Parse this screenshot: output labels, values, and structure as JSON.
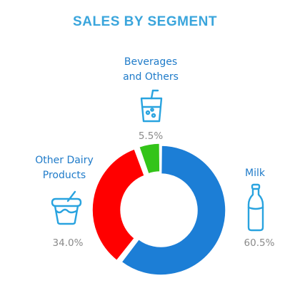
{
  "chart_data": {
    "type": "pie",
    "title": "SALES BY SEGMENT",
    "style": "donut",
    "segments": [
      {
        "name": "Milk",
        "value": 60.5,
        "label": "60.5%",
        "color": "#1c7ed6",
        "icon": "milk-bottle-icon"
      },
      {
        "name": "Other Dairy Products",
        "value": 34.0,
        "label": "34.0%",
        "color": "#ff0000",
        "icon": "yogurt-cup-icon"
      },
      {
        "name": "Beverages and Others",
        "value": 5.5,
        "label": "5.5%",
        "color": "#33c419",
        "icon": "drink-cup-icon"
      }
    ],
    "legend": "none"
  },
  "labels": {
    "milk": "Milk",
    "dairy_line1": "Other Dairy",
    "dairy_line2": "Products",
    "bev_line1": "Beverages",
    "bev_line2": "and Others"
  },
  "colors": {
    "title": "#3aa5dc",
    "label_text": "#1f7bc9",
    "percent_text": "#8a8a8a",
    "icon_stroke": "#29a3df"
  }
}
